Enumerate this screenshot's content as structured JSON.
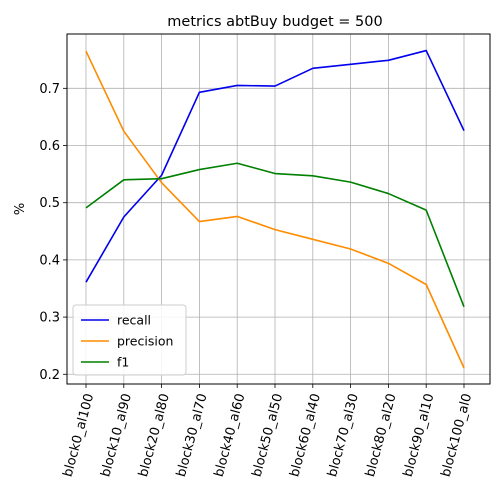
{
  "chart_data": {
    "type": "line",
    "title": "metrics abtBuy budget = 500",
    "xlabel": "",
    "ylabel": "%",
    "categories": [
      "block0_al100",
      "block10_al90",
      "block20_al80",
      "block30_al70",
      "block40_al60",
      "block50_al50",
      "block60_al40",
      "block70_al30",
      "block80_al20",
      "block90_al10",
      "block100_al0"
    ],
    "ylim": [
      0.183,
      0.795
    ],
    "yticks": [
      0.2,
      0.3,
      0.4,
      0.5,
      0.6,
      0.7
    ],
    "grid": true,
    "legend_position": "lower-left",
    "series": [
      {
        "name": "recall",
        "color": "#0000ee",
        "values": [
          0.361,
          0.475,
          0.548,
          0.693,
          0.705,
          0.704,
          0.735,
          0.742,
          0.749,
          0.766,
          0.626
        ]
      },
      {
        "name": "precision",
        "color": "#ff8c00",
        "values": [
          0.765,
          0.625,
          0.535,
          0.467,
          0.476,
          0.453,
          0.436,
          0.419,
          0.394,
          0.357,
          0.211
        ]
      },
      {
        "name": "f1",
        "color": "#008000",
        "values": [
          0.491,
          0.54,
          0.542,
          0.558,
          0.569,
          0.551,
          0.547,
          0.536,
          0.516,
          0.487,
          0.318
        ]
      }
    ]
  }
}
